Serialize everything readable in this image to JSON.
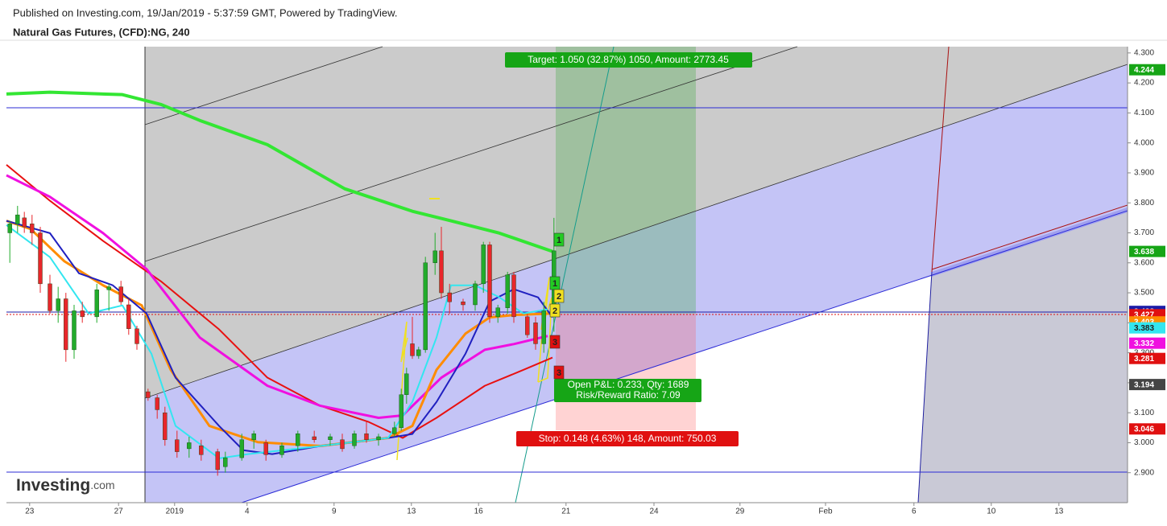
{
  "header": {
    "published": "Published on Investing.com, 19/Jan/2019 - 5:37:59 GMT, Powered by TradingView.",
    "symbol": "Natural Gas Futures, (CFD):NG, 240"
  },
  "logo": {
    "name": "Investing",
    "suffix": ".com"
  },
  "chart_data": {
    "type": "candlestick",
    "up_color": "#22ab2b",
    "down_color": "#e8262b",
    "x": [
      0.7,
      2.3,
      3.7,
      5.3,
      7,
      9,
      10.7,
      12.3,
      14,
      15.7,
      18.7,
      21.2,
      23.7,
      25.3,
      27,
      29.3,
      31.2,
      32.8,
      35.3,
      37.8,
      40.3,
      43.7,
      45.3,
      48.7,
      51.2,
      53.7,
      57,
      60.3,
      63.7,
      67,
      69.5,
      72,
      74.5,
      77,
      80.3,
      81.7,
      82.8,
      84,
      85.3,
      86.7,
      88.7,
      90,
      91.7,
      94.5,
      97,
      98.7,
      100,
      101.7,
      103.7,
      105,
      107.8,
      109.5,
      111.2,
      113.3
    ],
    "open": [
      3.7,
      3.73,
      3.75,
      3.73,
      3.7,
      3.53,
      3.44,
      3.48,
      3.31,
      3.44,
      3.42,
      3.51,
      3.52,
      3.46,
      3.38,
      3.17,
      3.15,
      3.1,
      3.01,
      2.98,
      2.99,
      2.97,
      2.92,
      2.95,
      3.01,
      3.0,
      2.96,
      2.99,
      3.02,
      3.01,
      3.01,
      2.99,
      3.03,
      3.01,
      3.03,
      3.05,
      3.16,
      3.33,
      3.29,
      3.31,
      3.6,
      3.64,
      3.5,
      3.47,
      3.46,
      3.53,
      3.66,
      3.42,
      3.45,
      3.56,
      3.42,
      3.4,
      3.33,
      3.43
    ],
    "high": [
      3.74,
      3.79,
      3.77,
      3.76,
      3.72,
      3.56,
      3.52,
      3.5,
      3.46,
      3.47,
      3.53,
      3.53,
      3.54,
      3.48,
      3.39,
      3.18,
      3.16,
      3.12,
      3.04,
      3.02,
      3.01,
      2.98,
      2.97,
      3.03,
      3.04,
      3.01,
      3.0,
      3.04,
      3.04,
      3.03,
      3.03,
      3.04,
      3.07,
      3.03,
      3.07,
      3.18,
      3.25,
      3.42,
      3.32,
      3.62,
      3.7,
      3.72,
      3.53,
      3.48,
      3.54,
      3.67,
      3.67,
      3.46,
      3.57,
      3.57,
      3.43,
      3.42,
      3.47,
      3.75
    ],
    "low": [
      3.6,
      3.7,
      3.7,
      3.66,
      3.5,
      3.43,
      3.4,
      3.27,
      3.28,
      3.4,
      3.4,
      3.44,
      3.46,
      3.36,
      3.31,
      3.14,
      3.08,
      2.99,
      2.95,
      2.95,
      2.94,
      2.89,
      2.9,
      2.94,
      2.98,
      2.94,
      2.95,
      2.97,
      3.0,
      2.99,
      2.97,
      2.98,
      3.0,
      2.99,
      3.02,
      3.04,
      3.13,
      3.28,
      3.28,
      3.3,
      3.56,
      3.48,
      3.43,
      3.44,
      3.44,
      3.5,
      3.4,
      3.4,
      3.43,
      3.4,
      3.35,
      3.31,
      3.3,
      3.37
    ],
    "close": [
      3.73,
      3.76,
      3.72,
      3.7,
      3.53,
      3.44,
      3.48,
      3.31,
      3.44,
      3.42,
      3.51,
      3.52,
      3.47,
      3.38,
      3.33,
      3.15,
      3.11,
      3.01,
      2.97,
      3.0,
      2.96,
      2.91,
      2.95,
      3.01,
      3.03,
      2.96,
      2.99,
      3.03,
      3.01,
      3.02,
      2.98,
      3.03,
      3.01,
      3.02,
      3.05,
      3.16,
      3.23,
      3.29,
      3.31,
      3.6,
      3.64,
      3.5,
      3.47,
      3.46,
      3.53,
      3.66,
      3.42,
      3.45,
      3.56,
      3.42,
      3.36,
      3.33,
      3.44,
      3.64
    ],
    "lines": [
      {
        "color": "#e81010",
        "width": 2,
        "x": [
          0,
          9,
          20,
          32,
          44,
          54,
          65,
          75,
          82,
          89,
          99,
          107,
          113
        ],
        "values": [
          3.927,
          3.807,
          3.673,
          3.538,
          3.378,
          3.217,
          3.123,
          3.069,
          3.016,
          3.083,
          3.19,
          3.243,
          3.284
        ]
      },
      {
        "color": "#f010e0",
        "width": 3,
        "x": [
          0,
          9,
          20,
          29,
          40,
          54,
          65,
          77,
          82,
          90,
          99,
          105,
          112
        ],
        "values": [
          3.892,
          3.82,
          3.699,
          3.579,
          3.351,
          3.19,
          3.123,
          3.083,
          3.091,
          3.217,
          3.31,
          3.329,
          3.356
        ]
      },
      {
        "color": "#ff8c00",
        "width": 3,
        "x": [
          0,
          5,
          12,
          20,
          28,
          34,
          42,
          52,
          65,
          79,
          84,
          89,
          95,
          100,
          105,
          113
        ],
        "values": [
          3.74,
          3.713,
          3.605,
          3.525,
          3.458,
          3.243,
          3.056,
          3.002,
          2.989,
          3.016,
          3.056,
          3.243,
          3.364,
          3.418,
          3.426,
          3.431
        ]
      },
      {
        "color": "#2020c0",
        "width": 2,
        "x": [
          0,
          9,
          15,
          22,
          29,
          35,
          44,
          49,
          55,
          65,
          79,
          84,
          89,
          95,
          100,
          105,
          110,
          113
        ],
        "values": [
          3.74,
          3.699,
          3.565,
          3.525,
          3.431,
          3.217,
          3.056,
          2.975,
          2.962,
          2.989,
          3.016,
          3.029,
          3.136,
          3.297,
          3.471,
          3.512,
          3.485,
          3.418
        ]
      },
      {
        "color": "#33e6f0",
        "width": 2,
        "x": [
          0,
          9,
          17,
          24,
          30,
          35,
          44,
          50,
          65,
          79,
          84,
          89,
          92,
          97,
          102,
          107,
          112
        ],
        "values": [
          3.726,
          3.619,
          3.431,
          3.458,
          3.297,
          3.056,
          2.948,
          2.962,
          2.989,
          3.016,
          3.136,
          3.351,
          3.525,
          3.525,
          3.485,
          3.431,
          3.445
        ]
      },
      {
        "color": "#33e633",
        "width": 4,
        "x": [
          0,
          9,
          24,
          32,
          40,
          54,
          70,
          84,
          92,
          102,
          113
        ],
        "values": [
          4.163,
          4.169,
          4.161,
          4.128,
          4.075,
          3.994,
          3.847,
          3.772,
          3.74,
          3.699,
          3.638
        ]
      }
    ],
    "xlim": [
      0,
      232
    ],
    "xticks": [
      {
        "value": 4.8,
        "label": "23"
      },
      {
        "value": 23.2,
        "label": "27"
      },
      {
        "value": 34.8,
        "label": "2019"
      },
      {
        "value": 49.8,
        "label": "4"
      },
      {
        "value": 67.8,
        "label": "9"
      },
      {
        "value": 83.8,
        "label": "13"
      },
      {
        "value": 97.7,
        "label": "16"
      },
      {
        "value": 115.8,
        "label": "21"
      },
      {
        "value": 134,
        "label": "24"
      },
      {
        "value": 151.8,
        "label": "29"
      },
      {
        "value": 169.5,
        "label": "Feb"
      },
      {
        "value": 187.8,
        "label": "6"
      },
      {
        "value": 203.8,
        "label": "10"
      },
      {
        "value": 217.8,
        "label": "13"
      }
    ],
    "ylim": [
      2.8,
      4.321
    ],
    "yticks": [
      {
        "value": 2.9,
        "label": "2.900"
      },
      {
        "value": 3.0,
        "label": "3.000"
      },
      {
        "value": 3.1,
        "label": "3.100"
      },
      {
        "value": 3.2,
        "label": "3.200"
      },
      {
        "value": 3.3,
        "label": "3.300"
      },
      {
        "value": 3.4,
        "label": "3.400"
      },
      {
        "value": 3.5,
        "label": "3.500"
      },
      {
        "value": 3.6,
        "label": "3.600"
      },
      {
        "value": 3.7,
        "label": "3.700"
      },
      {
        "value": 3.8,
        "label": "3.800"
      },
      {
        "value": 3.9,
        "label": "3.900"
      },
      {
        "value": 4.0,
        "label": "4.000"
      },
      {
        "value": 4.1,
        "label": "4.100"
      },
      {
        "value": 4.2,
        "label": "4.200"
      },
      {
        "value": 4.3,
        "label": "4.300"
      }
    ],
    "price_tags": [
      {
        "value": 4.244,
        "color": "#16a516"
      },
      {
        "value": 3.638,
        "color": "#16a516"
      },
      {
        "value": 3.438,
        "color": "#1c1ca8"
      },
      {
        "value": 3.427,
        "color": "#e01010"
      },
      {
        "value": 3.403,
        "color": "#ff8c00"
      },
      {
        "value": 3.383,
        "color": "#33e6f0"
      },
      {
        "value": 3.332,
        "color": "#f010e0"
      },
      {
        "value": 3.281,
        "color": "#e01010"
      },
      {
        "value": 3.194,
        "color": "#444444"
      },
      {
        "value": 3.046,
        "color": "#e01010"
      }
    ],
    "annotations": {
      "target": "Target: 1.050 (32.87%) 1050, Amount: 2773.45",
      "stop": "Stop: 0.148 (4.63%) 148, Amount: 750.03",
      "open_pnl": "Open P&L: 0.233, Qty: 1689",
      "risk_reward": "Risk/Reward Ratio: 7.09"
    },
    "wave_labels": [
      {
        "text": "1",
        "color": "#22cc22"
      },
      {
        "text": "1",
        "color": "#22cc22"
      },
      {
        "text": "2",
        "color": "#f0e020"
      },
      {
        "text": "2",
        "color": "#f0e020"
      },
      {
        "text": "3",
        "color": "#e01010"
      },
      {
        "text": "3",
        "color": "#e01010"
      }
    ]
  }
}
